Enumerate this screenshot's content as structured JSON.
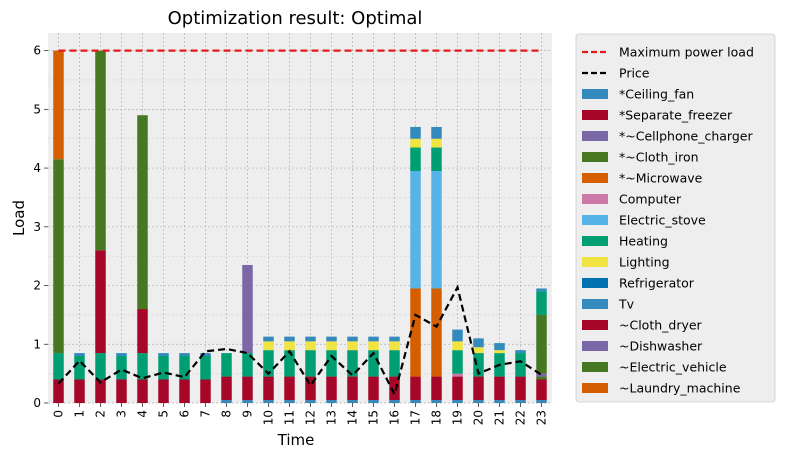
{
  "chart_data": {
    "type": "bar",
    "stacked": true,
    "title": "Optimization result: Optimal",
    "xlabel": "Time",
    "ylabel": "Load",
    "ylim": [
      0,
      6.3
    ],
    "yticks": [
      0,
      1,
      2,
      3,
      4,
      5,
      6
    ],
    "grid": true,
    "legend_position": "outside right",
    "categories": [
      "0",
      "1",
      "2",
      "3",
      "4",
      "5",
      "6",
      "7",
      "8",
      "9",
      "10",
      "11",
      "12",
      "13",
      "14",
      "15",
      "16",
      "17",
      "18",
      "19",
      "20",
      "21",
      "22",
      "23"
    ],
    "lines": [
      {
        "name": "Maximum power load",
        "color": "#e41a1c",
        "style": "dashed",
        "values": [
          6,
          6,
          6,
          6,
          6,
          6,
          6,
          6,
          6,
          6,
          6,
          6,
          6,
          6,
          6,
          6,
          6,
          6,
          6,
          6,
          6,
          6,
          6,
          6
        ]
      },
      {
        "name": "Price",
        "color": "#000000",
        "style": "dashed",
        "values": [
          0.33,
          0.72,
          0.35,
          0.57,
          0.42,
          0.52,
          0.44,
          0.88,
          0.92,
          0.85,
          0.5,
          0.88,
          0.3,
          0.8,
          0.47,
          0.85,
          0.15,
          1.5,
          1.3,
          1.97,
          0.5,
          0.65,
          0.71,
          0.48
        ]
      }
    ],
    "series": [
      {
        "name": "*Ceiling_fan",
        "color": "#348abd",
        "values": [
          0,
          0,
          0,
          0,
          0,
          0,
          0,
          0,
          0.05,
          0.05,
          0.05,
          0.05,
          0.05,
          0.05,
          0.05,
          0.05,
          0.05,
          0.05,
          0.05,
          0.05,
          0.05,
          0.05,
          0.05,
          0.05
        ]
      },
      {
        "name": "*Separate_freezer",
        "color": "#a60628",
        "values": [
          0,
          0,
          0,
          0,
          0,
          0,
          0,
          0,
          0,
          0,
          0,
          0,
          0,
          0,
          0,
          0,
          0,
          0,
          0,
          0,
          0,
          0,
          0,
          0
        ]
      },
      {
        "name": "*~Cellphone_charger",
        "color": "#7a68a6",
        "values": [
          0,
          0,
          0,
          0,
          0,
          0,
          0,
          0,
          0,
          0,
          0,
          0,
          0,
          0,
          0,
          0,
          0,
          0,
          0,
          0,
          0,
          0,
          0,
          0
        ]
      },
      {
        "name": "*~Cloth_iron",
        "color": "#467821",
        "values": [
          0,
          0,
          0,
          0,
          0,
          0,
          0,
          0,
          0,
          0,
          0,
          0,
          0,
          0,
          0,
          0,
          0,
          0,
          0,
          0,
          0,
          0,
          0,
          0
        ]
      },
      {
        "name": "*~Microwave",
        "color": "#d55e00",
        "values": [
          0,
          0,
          0,
          0,
          0,
          0,
          0,
          0,
          0,
          0,
          0,
          0,
          0,
          0,
          0,
          0,
          0,
          0,
          0,
          0,
          0,
          0,
          0,
          0
        ]
      },
      {
        "name": "Computer",
        "color": "#cc79a7",
        "values": [
          0,
          0,
          0,
          0,
          0,
          0,
          0,
          0,
          0,
          0,
          0,
          0,
          0,
          0,
          0,
          0,
          0,
          0,
          0,
          0,
          0,
          0,
          0,
          0
        ]
      },
      {
        "name": "Electric_stove",
        "color": "#56b4e9",
        "values": [
          0,
          0,
          0,
          0,
          0,
          0,
          0,
          0,
          0,
          0,
          0,
          0,
          0,
          0,
          0,
          0,
          0,
          0,
          0,
          0,
          0,
          0,
          0,
          0
        ]
      },
      {
        "name": "Heating",
        "color": "#009e73",
        "values": [
          0,
          0,
          0,
          0,
          0,
          0,
          0,
          0,
          0,
          0,
          0,
          0,
          0,
          0,
          0,
          0,
          0,
          0,
          0,
          0,
          0,
          0,
          0,
          0
        ]
      },
      {
        "name": "Lighting",
        "color": "#f0e442",
        "values": [
          0,
          0,
          0,
          0,
          0,
          0,
          0,
          0,
          0,
          0,
          0,
          0,
          0,
          0,
          0,
          0,
          0,
          0,
          0,
          0,
          0,
          0,
          0,
          0
        ]
      },
      {
        "name": "Refrigerator",
        "color": "#0072b2",
        "values": [
          0,
          0,
          0,
          0,
          0,
          0,
          0,
          0,
          0,
          0,
          0,
          0,
          0,
          0,
          0,
          0,
          0,
          0,
          0,
          0,
          0,
          0,
          0,
          0
        ]
      },
      {
        "name": "Tv",
        "color": "#348abd",
        "values": [
          0,
          0,
          0,
          0,
          0,
          0,
          0,
          0,
          0,
          0,
          0,
          0,
          0,
          0,
          0,
          0,
          0,
          0,
          0,
          0,
          0,
          0,
          0,
          0
        ]
      },
      {
        "name": "~Cloth_dryer",
        "color": "#a60628",
        "values": [
          0,
          0,
          0,
          0,
          0,
          0,
          0,
          0,
          0,
          0,
          0,
          0,
          0,
          0,
          0,
          0,
          0,
          0,
          0,
          0,
          0,
          0,
          0,
          0
        ]
      },
      {
        "name": "~Dishwasher",
        "color": "#7a68a6",
        "values": [
          0,
          0,
          0,
          0,
          0,
          0,
          0,
          0,
          0,
          0,
          0,
          0,
          0,
          0,
          0,
          0,
          0,
          0,
          0,
          0,
          0,
          0,
          0,
          0
        ]
      },
      {
        "name": "~Electric_vehicle",
        "color": "#467821",
        "values": [
          0,
          0,
          0,
          0,
          0,
          0,
          0,
          0,
          0,
          0,
          0,
          0,
          0,
          0,
          0,
          0,
          0,
          0,
          0,
          0,
          0,
          0,
          0,
          0
        ]
      },
      {
        "name": "~Laundry_machine",
        "color": "#d55e00",
        "values": [
          0,
          0,
          0,
          0,
          0,
          0,
          0,
          0,
          0,
          0,
          0,
          0,
          0,
          0,
          0,
          0,
          0,
          0,
          0,
          0,
          0,
          0,
          0,
          0
        ]
      }
    ],
    "bar_segments": [
      [
        {
          "s": "~Cloth_dryer",
          "v": 0.4
        },
        {
          "s": "Heating",
          "v": 0.45
        },
        {
          "s": "~Electric_vehicle",
          "v": 3.3
        },
        {
          "s": "~Laundry_machine",
          "v": 1.85
        }
      ],
      [
        {
          "s": "~Cloth_dryer",
          "v": 0.4
        },
        {
          "s": "Heating",
          "v": 0.4
        },
        {
          "s": "Tv",
          "v": 0.05
        }
      ],
      [
        {
          "s": "~Cloth_dryer",
          "v": 0.4
        },
        {
          "s": "Heating",
          "v": 0.45
        },
        {
          "s": "*Separate_freezer",
          "v": 1.75
        },
        {
          "s": "~Electric_vehicle",
          "v": 3.4
        }
      ],
      [
        {
          "s": "~Cloth_dryer",
          "v": 0.4
        },
        {
          "s": "Heating",
          "v": 0.4
        },
        {
          "s": "Tv",
          "v": 0.05
        }
      ],
      [
        {
          "s": "~Cloth_dryer",
          "v": 0.4
        },
        {
          "s": "Heating",
          "v": 0.45
        },
        {
          "s": "*Separate_freezer",
          "v": 0.75
        },
        {
          "s": "~Electric_vehicle",
          "v": 3.3
        }
      ],
      [
        {
          "s": "~Cloth_dryer",
          "v": 0.4
        },
        {
          "s": "Heating",
          "v": 0.4
        },
        {
          "s": "Tv",
          "v": 0.05
        }
      ],
      [
        {
          "s": "~Cloth_dryer",
          "v": 0.4
        },
        {
          "s": "Heating",
          "v": 0.4
        },
        {
          "s": "Tv",
          "v": 0.05
        }
      ],
      [
        {
          "s": "~Cloth_dryer",
          "v": 0.4
        },
        {
          "s": "Heating",
          "v": 0.4
        },
        {
          "s": "Tv",
          "v": 0.05
        }
      ],
      [
        {
          "s": "*Ceiling_fan",
          "v": 0.05
        },
        {
          "s": "~Cloth_dryer",
          "v": 0.4
        },
        {
          "s": "Heating",
          "v": 0.4
        }
      ],
      [
        {
          "s": "*Ceiling_fan",
          "v": 0.05
        },
        {
          "s": "~Cloth_dryer",
          "v": 0.4
        },
        {
          "s": "Heating",
          "v": 0.4
        },
        {
          "s": "~Dishwasher",
          "v": 1.5
        }
      ],
      [
        {
          "s": "*Ceiling_fan",
          "v": 0.05
        },
        {
          "s": "~Cloth_dryer",
          "v": 0.4
        },
        {
          "s": "Heating",
          "v": 0.45
        },
        {
          "s": "Lighting",
          "v": 0.15
        },
        {
          "s": "Tv",
          "v": 0.08
        }
      ],
      [
        {
          "s": "*Ceiling_fan",
          "v": 0.05
        },
        {
          "s": "~Cloth_dryer",
          "v": 0.4
        },
        {
          "s": "Heating",
          "v": 0.45
        },
        {
          "s": "Lighting",
          "v": 0.15
        },
        {
          "s": "Tv",
          "v": 0.08
        }
      ],
      [
        {
          "s": "*Ceiling_fan",
          "v": 0.05
        },
        {
          "s": "~Cloth_dryer",
          "v": 0.4
        },
        {
          "s": "Heating",
          "v": 0.45
        },
        {
          "s": "Lighting",
          "v": 0.15
        },
        {
          "s": "Tv",
          "v": 0.08
        }
      ],
      [
        {
          "s": "*Ceiling_fan",
          "v": 0.05
        },
        {
          "s": "~Cloth_dryer",
          "v": 0.4
        },
        {
          "s": "Heating",
          "v": 0.45
        },
        {
          "s": "Lighting",
          "v": 0.15
        },
        {
          "s": "Tv",
          "v": 0.08
        }
      ],
      [
        {
          "s": "*Ceiling_fan",
          "v": 0.05
        },
        {
          "s": "~Cloth_dryer",
          "v": 0.4
        },
        {
          "s": "Heating",
          "v": 0.45
        },
        {
          "s": "Lighting",
          "v": 0.15
        },
        {
          "s": "Tv",
          "v": 0.08
        }
      ],
      [
        {
          "s": "*Ceiling_fan",
          "v": 0.05
        },
        {
          "s": "~Cloth_dryer",
          "v": 0.4
        },
        {
          "s": "Heating",
          "v": 0.45
        },
        {
          "s": "Lighting",
          "v": 0.15
        },
        {
          "s": "Tv",
          "v": 0.08
        }
      ],
      [
        {
          "s": "*Ceiling_fan",
          "v": 0.05
        },
        {
          "s": "~Cloth_dryer",
          "v": 0.4
        },
        {
          "s": "Heating",
          "v": 0.45
        },
        {
          "s": "Lighting",
          "v": 0.15
        },
        {
          "s": "Tv",
          "v": 0.08
        }
      ],
      [
        {
          "s": "*Ceiling_fan",
          "v": 0.05
        },
        {
          "s": "~Cloth_dryer",
          "v": 0.4
        },
        {
          "s": "~Laundry_machine",
          "v": 1.5
        },
        {
          "s": "Electric_stove",
          "v": 2.0
        },
        {
          "s": "Heating",
          "v": 0.4
        },
        {
          "s": "Lighting",
          "v": 0.15
        },
        {
          "s": "Tv",
          "v": 0.2
        }
      ],
      [
        {
          "s": "*Ceiling_fan",
          "v": 0.05
        },
        {
          "s": "~Cloth_dryer",
          "v": 0.4
        },
        {
          "s": "~Laundry_machine",
          "v": 1.5
        },
        {
          "s": "Electric_stove",
          "v": 2.0
        },
        {
          "s": "Heating",
          "v": 0.4
        },
        {
          "s": "Lighting",
          "v": 0.15
        },
        {
          "s": "Tv",
          "v": 0.2
        }
      ],
      [
        {
          "s": "*Ceiling_fan",
          "v": 0.05
        },
        {
          "s": "~Cloth_dryer",
          "v": 0.4
        },
        {
          "s": "Computer",
          "v": 0.05
        },
        {
          "s": "Heating",
          "v": 0.4
        },
        {
          "s": "Lighting",
          "v": 0.15
        },
        {
          "s": "Tv",
          "v": 0.2
        }
      ],
      [
        {
          "s": "*Ceiling_fan",
          "v": 0.05
        },
        {
          "s": "~Cloth_dryer",
          "v": 0.4
        },
        {
          "s": "Heating",
          "v": 0.4
        },
        {
          "s": "Lighting",
          "v": 0.1
        },
        {
          "s": "Tv",
          "v": 0.15
        }
      ],
      [
        {
          "s": "*Ceiling_fan",
          "v": 0.05
        },
        {
          "s": "~Cloth_dryer",
          "v": 0.4
        },
        {
          "s": "Heating",
          "v": 0.4
        },
        {
          "s": "Lighting",
          "v": 0.05
        },
        {
          "s": "Tv",
          "v": 0.12
        }
      ],
      [
        {
          "s": "*Ceiling_fan",
          "v": 0.05
        },
        {
          "s": "~Cloth_dryer",
          "v": 0.4
        },
        {
          "s": "Heating",
          "v": 0.4
        },
        {
          "s": "Tv",
          "v": 0.05
        }
      ],
      [
        {
          "s": "*Ceiling_fan",
          "v": 0.05
        },
        {
          "s": "~Cloth_dryer",
          "v": 0.35
        },
        {
          "s": "~Electric_vehicle",
          "v": 0.05
        },
        {
          "s": "~Dishwasher",
          "v": 0.05
        },
        {
          "s": "~Electric_vehicle",
          "v": 1.0
        },
        {
          "s": "Heating",
          "v": 0.4
        },
        {
          "s": "Tv",
          "v": 0.05
        }
      ]
    ]
  }
}
